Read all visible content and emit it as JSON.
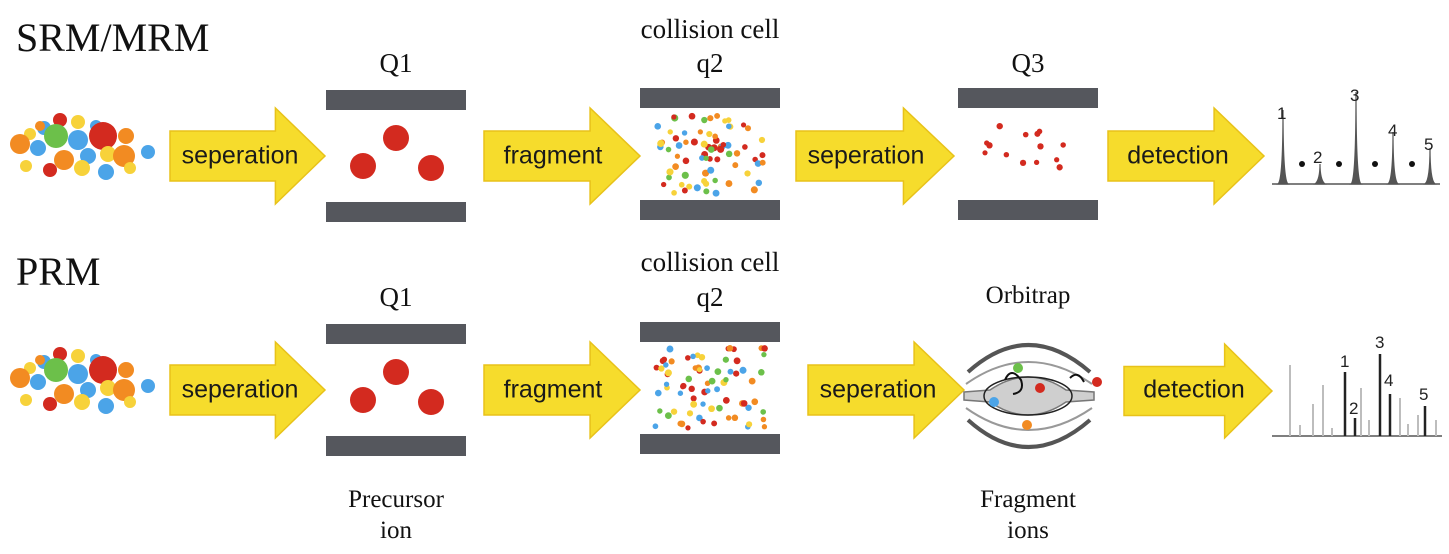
{
  "rows": [
    {
      "title": "SRM/MRM",
      "stages": [
        {
          "label": "Q1"
        },
        {
          "label_line1": "collision cell",
          "label_line2": "q2"
        },
        {
          "label": "Q3"
        }
      ],
      "arrows": [
        "seperation",
        "fragment",
        "seperation",
        "detection"
      ],
      "peak_numbers": [
        "1",
        "2",
        "3",
        "4",
        "5"
      ]
    },
    {
      "title": "PRM",
      "stages": [
        {
          "label": "Q1"
        },
        {
          "label_line1": "collision cell",
          "label_line2": "q2"
        },
        {
          "label": "Orbitrap"
        }
      ],
      "arrows": [
        "seperation",
        "fragment",
        "seperation",
        "detection"
      ],
      "peak_numbers": [
        "1",
        "2",
        "3",
        "4",
        "5"
      ]
    }
  ],
  "captions": {
    "precursor_line1": "Precursor",
    "precursor_line2": "ion",
    "fragment_line1": "Fragment",
    "fragment_line2": "ions"
  },
  "colors": {
    "arrow": "#f6dc2c",
    "arrow_edge": "#e8c21a",
    "plate": "#55575d",
    "precursor": "#d32a1f",
    "ion_palette": [
      "#d32a1f",
      "#f28b22",
      "#f7d23a",
      "#4ba4e8",
      "#6cc04a"
    ],
    "spectrum_main": "#555555",
    "spectrum_background": "#bdbdbd"
  }
}
